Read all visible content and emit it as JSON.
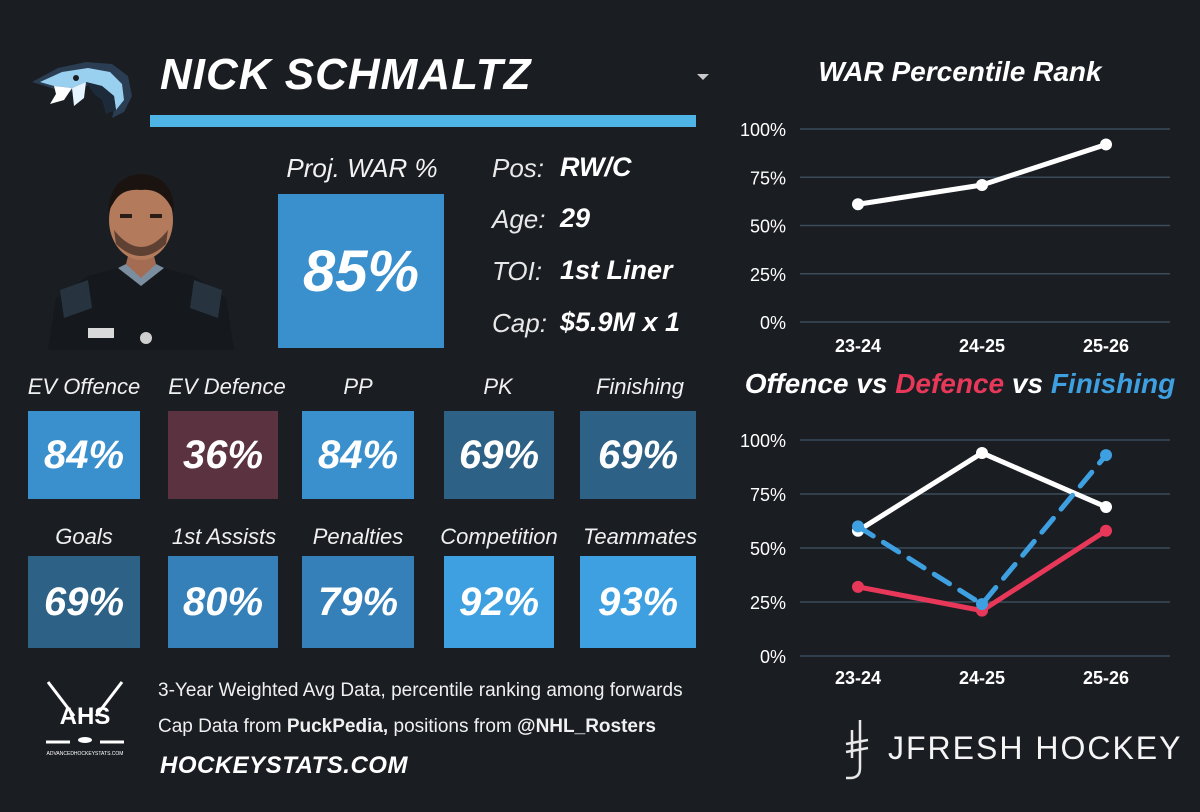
{
  "player": {
    "name": "NICK SCHMALTZ",
    "proj_war_label": "Proj. WAR %",
    "proj_war_value": "85%",
    "info": [
      {
        "label": "Pos:",
        "value": "RW/C"
      },
      {
        "label": "Age:",
        "value": "29"
      },
      {
        "label": "TOI:",
        "value": "1st Liner"
      },
      {
        "label": "Cap:",
        "value": "$5.9M x 1"
      }
    ]
  },
  "stats": [
    {
      "label": "EV Offence",
      "value": "84%",
      "color": "#3a8fcd"
    },
    {
      "label": "EV Defence",
      "value": "36%",
      "color": "#5b3340"
    },
    {
      "label": "PP",
      "value": "84%",
      "color": "#3a8fcd"
    },
    {
      "label": "PK",
      "value": "69%",
      "color": "#2e6186"
    },
    {
      "label": "Finishing",
      "value": "69%",
      "color": "#2e6186"
    },
    {
      "label": "Goals",
      "value": "69%",
      "color": "#2e6186"
    },
    {
      "label": "1st Assists",
      "value": "80%",
      "color": "#3580b9"
    },
    {
      "label": "Penalties",
      "value": "79%",
      "color": "#3580b9"
    },
    {
      "label": "Competition",
      "value": "92%",
      "color": "#3ea0e0"
    },
    {
      "label": "Teammates",
      "value": "93%",
      "color": "#3ea0e0"
    }
  ],
  "footer": {
    "line1": "3-Year Weighted Avg Data, percentile ranking among forwards",
    "line2_prefix": "Cap Data from ",
    "line2_source": "PuckPedia,",
    "line2_mid": " positions from ",
    "line2_handle": "@NHL_Rosters",
    "site": "HOCKEYSTATS.COM",
    "ahs_text": "AHS",
    "ahs_sub": "ADVANCEDHOCKEYSTATS.COM",
    "brand": "JFRESH HOCKEY"
  },
  "colors": {
    "accent": "#4fb4e6",
    "offence": "#ffffff",
    "defence": "#e8385a",
    "finishing": "#3ea0e0",
    "background": "#1a1d22"
  },
  "chart_data": [
    {
      "type": "line",
      "title": "WAR Percentile Rank",
      "categories": [
        "23-24",
        "24-25",
        "25-26"
      ],
      "yticks": [
        "100%",
        "75%",
        "50%",
        "25%",
        "0%"
      ],
      "ylim": [
        0,
        100
      ],
      "grid": true,
      "series": [
        {
          "values": [
            61,
            71,
            92
          ],
          "color": "#ffffff",
          "dash": false
        }
      ]
    },
    {
      "type": "line",
      "title_parts": [
        {
          "text": "Offence vs ",
          "color": "#ffffff"
        },
        {
          "text": "Defence",
          "color": "#e8385a"
        },
        {
          "text": " vs ",
          "color": "#ffffff"
        },
        {
          "text": "Finishing",
          "color": "#3ea0e0"
        }
      ],
      "categories": [
        "23-24",
        "24-25",
        "25-26"
      ],
      "yticks": [
        "100%",
        "75%",
        "50%",
        "25%",
        "0%"
      ],
      "ylim": [
        0,
        100
      ],
      "grid": true,
      "series": [
        {
          "name": "Offence",
          "values": [
            58,
            94,
            69
          ],
          "color": "#ffffff",
          "dash": false
        },
        {
          "name": "Defence",
          "values": [
            32,
            21,
            58
          ],
          "color": "#e8385a",
          "dash": false
        },
        {
          "name": "Finishing",
          "values": [
            60,
            24,
            93
          ],
          "color": "#3ea0e0",
          "dash": true
        }
      ]
    }
  ]
}
